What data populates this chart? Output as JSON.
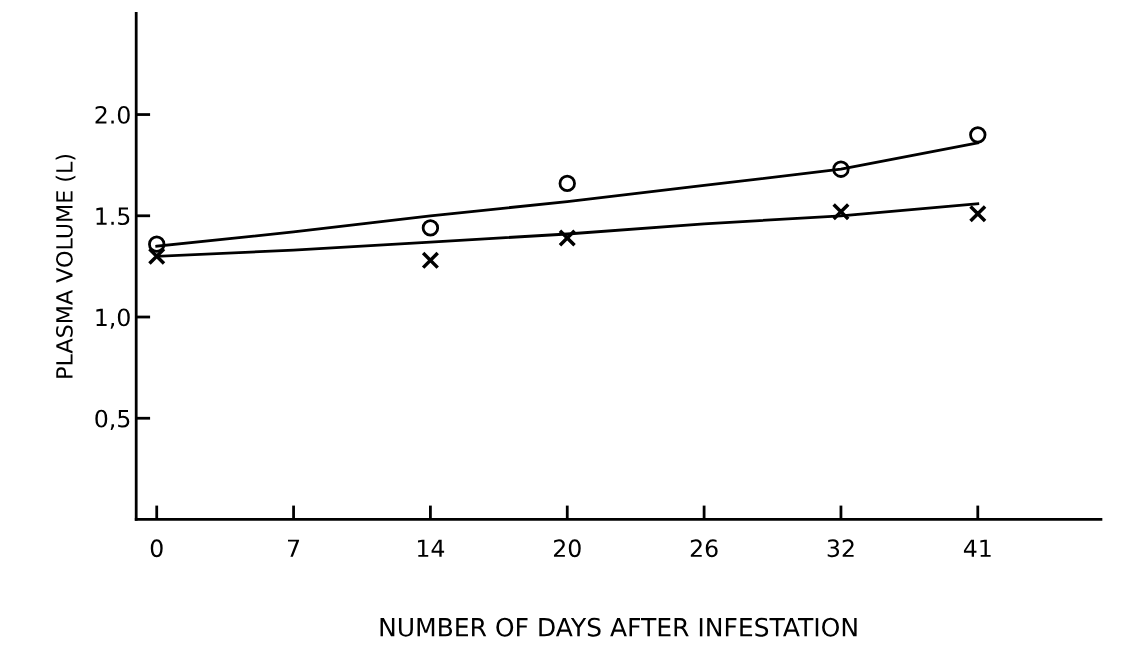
{
  "chart_data": {
    "type": "scatter",
    "xlabel": "NUMBER OF DAYS AFTER INFESTATION",
    "ylabel": "PLASMA VOLUME (L)",
    "categories": [
      "0",
      "7",
      "14",
      "20",
      "26",
      "32",
      "41"
    ],
    "series": [
      {
        "marker": "circle",
        "color": "#000000",
        "values": [
          1.36,
          null,
          1.44,
          1.66,
          null,
          1.73,
          1.9
        ]
      },
      {
        "marker": "cross",
        "color": "#000000",
        "values": [
          1.3,
          null,
          1.28,
          1.39,
          null,
          1.52,
          1.51
        ]
      },
      {
        "type": "line",
        "marker": "none",
        "color": "#000000",
        "values": [
          1.35,
          1.42,
          1.5,
          1.57,
          1.65,
          1.73,
          1.86
        ]
      },
      {
        "type": "line",
        "marker": "none",
        "color": "#000000",
        "values": [
          1.3,
          1.33,
          1.37,
          1.41,
          1.46,
          1.5,
          1.56
        ]
      }
    ],
    "ylim": [
      0,
      2.5
    ],
    "yticks": [
      {
        "value": 0.5,
        "label": "0,5"
      },
      {
        "value": 1.0,
        "label": "1,0"
      },
      {
        "value": 1.5,
        "label": "1.5"
      },
      {
        "value": 2.0,
        "label": "2.0"
      }
    ],
    "grid": false,
    "legend": false
  }
}
